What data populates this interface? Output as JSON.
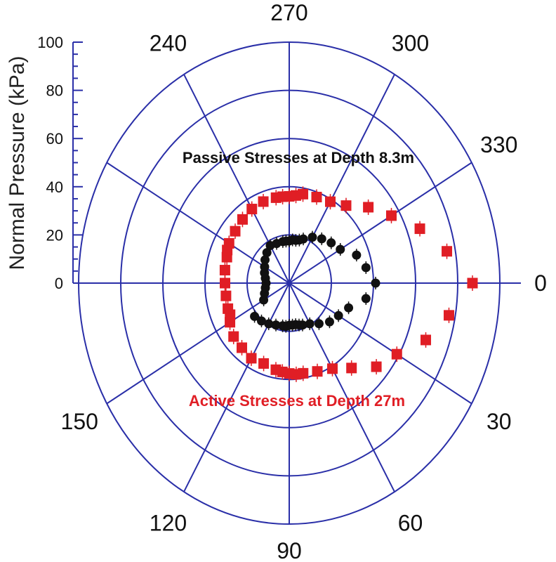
{
  "chart_data": {
    "type": "scatter",
    "subtype": "polar",
    "ylabel": "Normal Pressure (kPa)",
    "radial_range": [
      0,
      100
    ],
    "radial_ticks": [
      "0",
      "20",
      "40",
      "60",
      "80",
      "100"
    ],
    "angular_ticks": [
      "0",
      "30",
      "60",
      "90",
      "120",
      "150",
      "240",
      "270",
      "300",
      "330"
    ],
    "angle_direction": "clockwise, 0 at right",
    "grid": true,
    "annotations": {
      "passive": "Passive Stresses at Depth 8.3m",
      "active": "Active Stresses at Depth 27m"
    },
    "series": [
      {
        "marker": "circle",
        "color": "#111111",
        "angle_deg": [
          0,
          10,
          20,
          30,
          40,
          50,
          60,
          70,
          75,
          80,
          85,
          90,
          95,
          100,
          110,
          120,
          130,
          140,
          150,
          160,
          170,
          180,
          190,
          200,
          210,
          220,
          230,
          240,
          250,
          260,
          265,
          270,
          275,
          280,
          285,
          290,
          300,
          310,
          320,
          330,
          340,
          350
        ],
        "r_kPa": [
          41,
          37,
          30,
          27,
          25,
          22,
          19.5,
          18.5,
          18,
          17.5,
          17.5,
          17.5,
          18,
          18,
          18.5,
          19.5,
          20.5,
          21.5,
          14,
          12.5,
          11.5,
          11,
          11.5,
          12.5,
          13.5,
          15,
          16.5,
          18,
          17.5,
          17.5,
          17.5,
          17.5,
          18,
          18,
          18.5,
          19.5,
          22,
          24,
          26,
          28,
          34,
          37
        ]
      },
      {
        "marker": "square",
        "color": "#e01e25",
        "angle_deg": [
          0,
          10,
          20,
          30,
          40,
          50,
          60,
          70,
          80,
          85,
          90,
          95,
          100,
          110,
          120,
          130,
          140,
          150,
          155,
          160,
          170,
          180,
          190,
          200,
          205,
          210,
          220,
          230,
          240,
          250,
          260,
          265,
          270,
          275,
          280,
          290,
          300,
          310,
          320,
          330,
          340,
          350
        ],
        "r_kPa": [
          87,
          77,
          69,
          59,
          54,
          46,
          41,
          39,
          38,
          38,
          37.5,
          37,
          36.5,
          35.5,
          36,
          35,
          34.5,
          32.5,
          31,
          31,
          30.5,
          30.5,
          31,
          31.5,
          32.5,
          33,
          33.5,
          34.5,
          35.5,
          36,
          36,
          36,
          36,
          36.5,
          37.5,
          38,
          39,
          42,
          49,
          56,
          66,
          76
        ]
      }
    ]
  },
  "colors": {
    "grid": "#2a2fa8",
    "series_passive": "#111111",
    "series_active": "#e01e25"
  }
}
